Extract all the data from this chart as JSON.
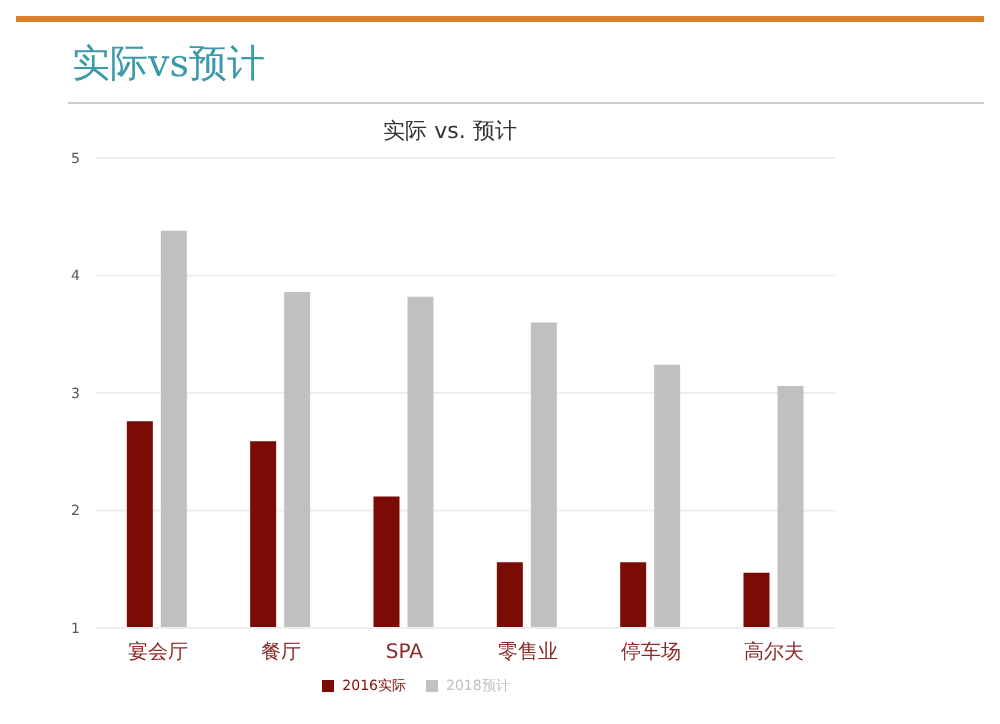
{
  "chart_data": {
    "type": "bar",
    "title": "实际vs预计",
    "subtitle": "实际 vs. 预计",
    "categories": [
      "宴会厅",
      "餐厅",
      "SPA",
      "零售业",
      "停车场",
      "高尔夫"
    ],
    "series": [
      {
        "name": "2016实际",
        "color": "#7b0c05",
        "values": [
          2.76,
          2.59,
          2.12,
          1.56,
          1.56,
          1.47
        ]
      },
      {
        "name": "2018预计",
        "color": "#c0c0c0",
        "values": [
          4.38,
          3.86,
          3.82,
          3.6,
          3.24,
          3.06
        ]
      }
    ],
    "ylim": [
      1,
      5
    ],
    "yticks": [
      1,
      2,
      3,
      4,
      5
    ],
    "grid": "y",
    "legend": "bottom"
  }
}
